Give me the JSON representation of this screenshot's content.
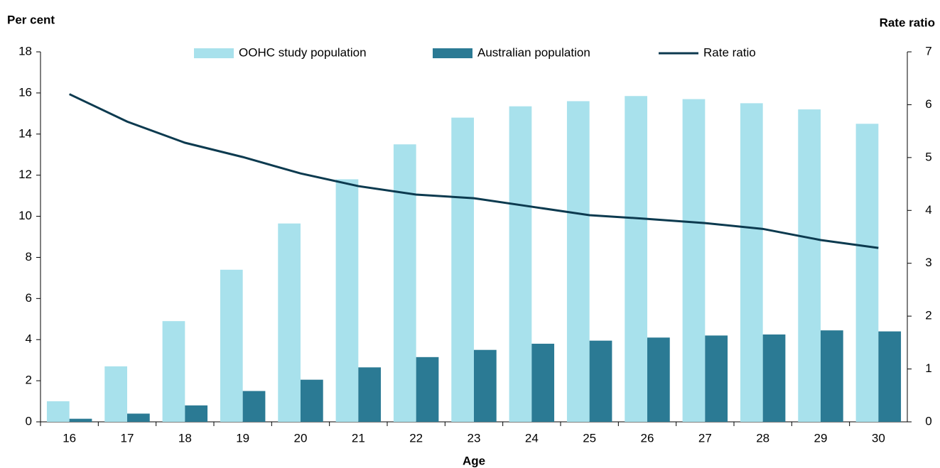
{
  "chart_data": {
    "type": "bar",
    "y_label": "Per cent",
    "y2_label": "Rate ratio",
    "x_label": "Age",
    "categories": [
      "16",
      "17",
      "18",
      "19",
      "20",
      "21",
      "22",
      "23",
      "24",
      "25",
      "26",
      "27",
      "28",
      "29",
      "30"
    ],
    "series": [
      {
        "name": "OOHC study population",
        "type": "bar",
        "color": "#a8e1ec",
        "values": [
          1.0,
          2.7,
          4.9,
          7.4,
          9.65,
          11.8,
          13.5,
          14.8,
          15.35,
          15.6,
          15.85,
          15.7,
          15.5,
          15.2,
          14.5
        ]
      },
      {
        "name": "Australian population",
        "type": "bar",
        "color": "#2b7a94",
        "values": [
          0.15,
          0.4,
          0.8,
          1.5,
          2.05,
          2.65,
          3.15,
          3.5,
          3.8,
          3.95,
          4.1,
          4.2,
          4.25,
          4.45,
          4.4
        ]
      },
      {
        "name": "Rate ratio",
        "type": "line",
        "axis": "y2",
        "color": "#0c3a4f",
        "values": [
          6.2,
          5.68,
          5.28,
          5.01,
          4.7,
          4.46,
          4.3,
          4.23,
          4.07,
          3.91,
          3.84,
          3.76,
          3.65,
          3.44,
          3.29
        ]
      }
    ],
    "ylim": [
      0,
      18
    ],
    "yticks": [
      0,
      2,
      4,
      6,
      8,
      10,
      12,
      14,
      16,
      18
    ],
    "y2lim": [
      0,
      7
    ],
    "y2ticks": [
      0,
      1,
      2,
      3,
      4,
      5,
      6,
      7
    ],
    "legend": "top"
  }
}
